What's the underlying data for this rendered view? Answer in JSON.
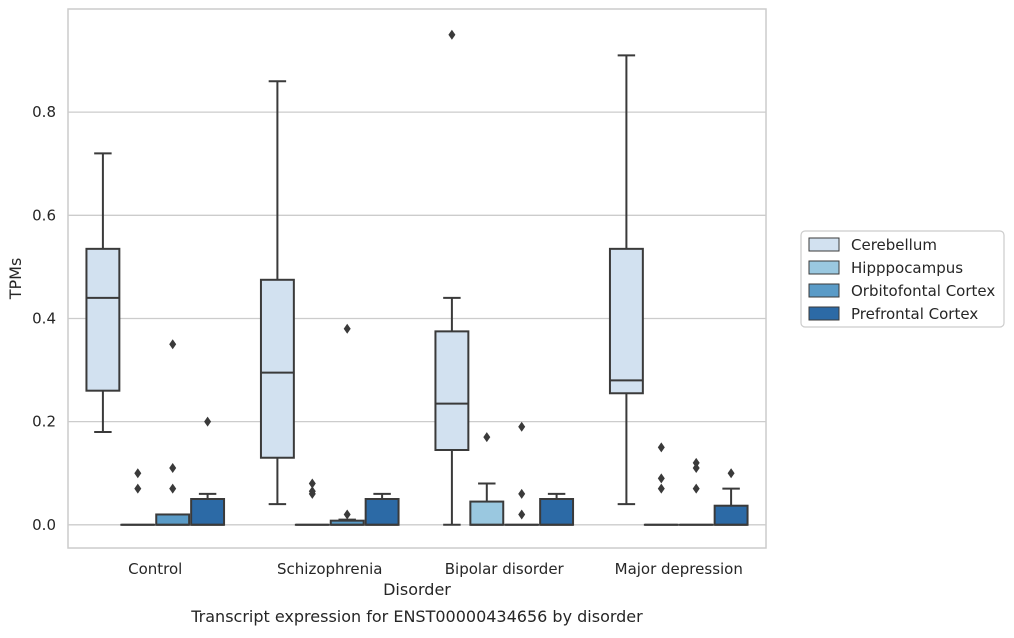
{
  "chart_data": {
    "type": "box",
    "caption": "Transcript expression for ENST00000434656 by disorder",
    "xlabel": "Disorder",
    "ylabel": "TPMs",
    "categories": [
      "Control",
      "Schizophrenia",
      "Bipolar disorder",
      "Major depression"
    ],
    "ylim": [
      -0.045,
      1.0
    ],
    "yticks": [
      0.0,
      0.2,
      0.4,
      0.6,
      0.8
    ],
    "ytick_labels": [
      "0.0",
      "0.2",
      "0.4",
      "0.6",
      "0.8"
    ],
    "grid": "horizontal",
    "legend_position": "right",
    "series": [
      {
        "name": "Cerebellum",
        "color": "#d2e1f0",
        "boxes": [
          {
            "min": 0.18,
            "q1": 0.26,
            "median": 0.44,
            "q3": 0.535,
            "max": 0.72,
            "outliers": []
          },
          {
            "min": 0.04,
            "q1": 0.13,
            "median": 0.295,
            "q3": 0.475,
            "max": 0.86,
            "outliers": []
          },
          {
            "min": 0.0,
            "q1": 0.145,
            "median": 0.235,
            "q3": 0.375,
            "max": 0.44,
            "outliers": [
              0.95
            ]
          },
          {
            "min": 0.04,
            "q1": 0.255,
            "median": 0.28,
            "q3": 0.535,
            "max": 0.91,
            "outliers": []
          }
        ]
      },
      {
        "name": "Hipppocampus",
        "color": "#9ac8e0",
        "boxes": [
          {
            "min": 0.0,
            "q1": 0.0,
            "median": 0.0,
            "q3": 0.0,
            "max": 0.0,
            "outliers": [
              0.07,
              0.1
            ]
          },
          {
            "min": 0.0,
            "q1": 0.0,
            "median": 0.0,
            "q3": 0.0,
            "max": 0.0,
            "outliers": [
              0.06,
              0.065,
              0.08
            ]
          },
          {
            "min": 0.0,
            "q1": 0.0,
            "median": 0.0,
            "q3": 0.045,
            "max": 0.08,
            "outliers": [
              0.17
            ]
          },
          {
            "min": 0.0,
            "q1": 0.0,
            "median": 0.0,
            "q3": 0.0,
            "max": 0.0,
            "outliers": [
              0.07,
              0.09,
              0.15
            ]
          }
        ]
      },
      {
        "name": "Orbitofontal Cortex",
        "color": "#5a9bc7",
        "boxes": [
          {
            "min": 0.0,
            "q1": 0.0,
            "median": 0.0,
            "q3": 0.02,
            "max": 0.02,
            "outliers": [
              0.07,
              0.11,
              0.35
            ]
          },
          {
            "min": 0.0,
            "q1": 0.0,
            "median": 0.0,
            "q3": 0.008,
            "max": 0.01,
            "outliers": [
              0.02,
              0.38
            ]
          },
          {
            "min": 0.0,
            "q1": 0.0,
            "median": 0.0,
            "q3": 0.0,
            "max": 0.0,
            "outliers": [
              0.02,
              0.06,
              0.19
            ]
          },
          {
            "min": 0.0,
            "q1": 0.0,
            "median": 0.0,
            "q3": 0.0,
            "max": 0.0,
            "outliers": [
              0.07,
              0.11,
              0.12
            ]
          }
        ]
      },
      {
        "name": "Prefrontal Cortex",
        "color": "#2c6aa6",
        "boxes": [
          {
            "min": 0.0,
            "q1": 0.0,
            "median": 0.0,
            "q3": 0.05,
            "max": 0.06,
            "outliers": [
              0.2
            ]
          },
          {
            "min": 0.0,
            "q1": 0.0,
            "median": 0.0,
            "q3": 0.05,
            "max": 0.06,
            "outliers": []
          },
          {
            "min": 0.0,
            "q1": 0.0,
            "median": 0.0,
            "q3": 0.05,
            "max": 0.06,
            "outliers": []
          },
          {
            "min": 0.0,
            "q1": 0.0,
            "median": 0.0,
            "q3": 0.037,
            "max": 0.07,
            "outliers": [
              0.1
            ]
          }
        ]
      }
    ]
  }
}
